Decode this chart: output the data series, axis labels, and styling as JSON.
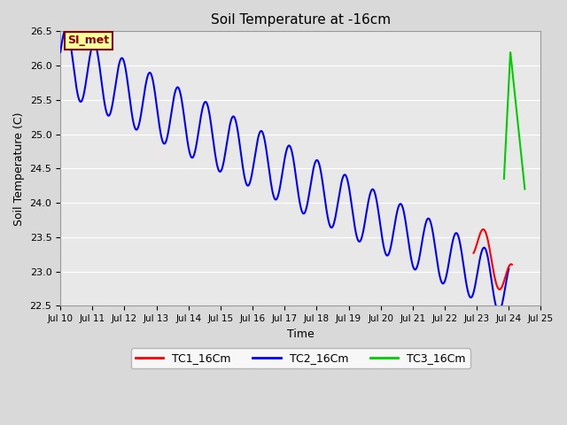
{
  "title": "Soil Temperature at -16cm",
  "xlabel": "Time",
  "ylabel": "Soil Temperature (C)",
  "ylim": [
    22.5,
    26.5
  ],
  "bg_color": "#e8e8e8",
  "grid_color": "#ffffff",
  "annotation_text": "SI_met",
  "annotation_bg": "#ffff99",
  "annotation_border": "#8b0000",
  "tc1_color": "#ff0000",
  "tc2_color": "#0000ff",
  "tc3_color": "#00cc00",
  "legend_labels": [
    "TC1_16Cm",
    "TC2_16Cm",
    "TC3_16Cm"
  ],
  "figsize": [
    6.4,
    4.8
  ],
  "dpi": 100
}
